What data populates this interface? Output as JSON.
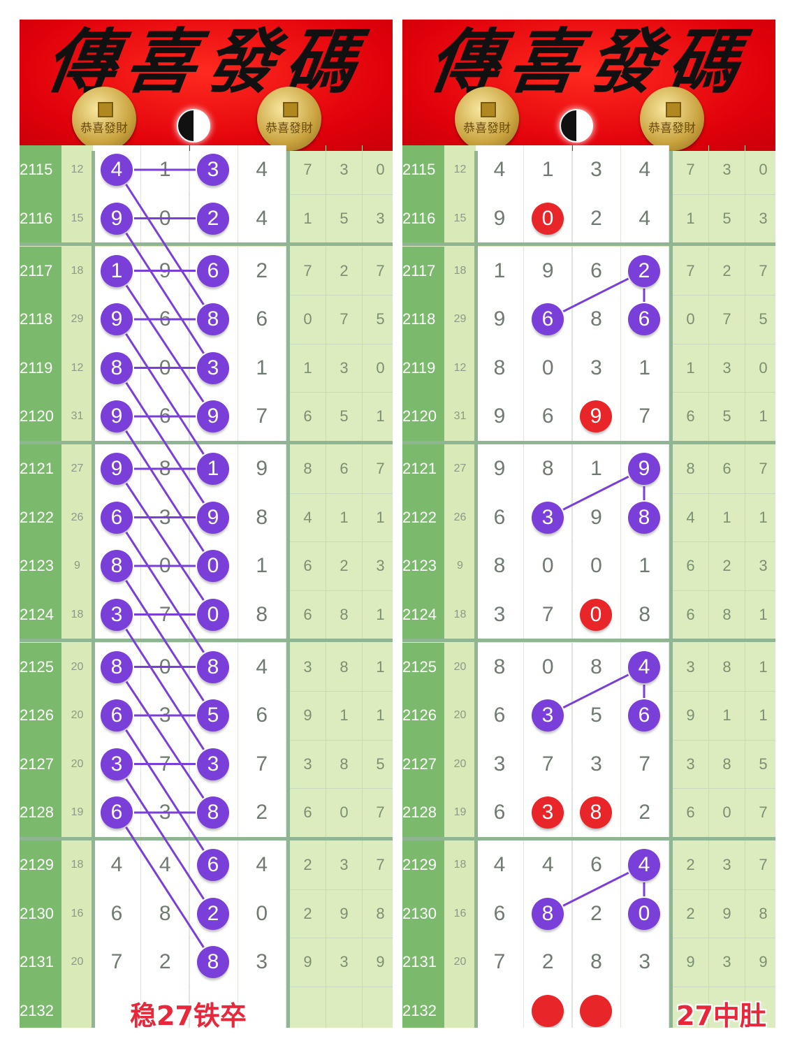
{
  "banner": {
    "lettering": "傳喜發碼",
    "coin_lettering": "恭喜發財"
  },
  "colors": {
    "purple": "#7a3fd8",
    "red": "#e8262a",
    "period_bg": "#7bb96c",
    "caption": "#e8283a",
    "banner": "#e8000a"
  },
  "groups": [
    2,
    4,
    4,
    4,
    4
  ],
  "rows": [
    {
      "period": "2115",
      "sum": "12",
      "digits": [
        "4",
        "1",
        "3",
        "4"
      ],
      "tail": [
        "7",
        "3",
        "0"
      ]
    },
    {
      "period": "2116",
      "sum": "15",
      "digits": [
        "9",
        "0",
        "2",
        "4"
      ],
      "tail": [
        "1",
        "5",
        "3"
      ]
    },
    {
      "period": "2117",
      "sum": "18",
      "digits": [
        "1",
        "9",
        "6",
        "2"
      ],
      "tail": [
        "7",
        "2",
        "7"
      ]
    },
    {
      "period": "2118",
      "sum": "29",
      "digits": [
        "9",
        "6",
        "8",
        "6"
      ],
      "tail": [
        "0",
        "7",
        "5"
      ]
    },
    {
      "period": "2119",
      "sum": "12",
      "digits": [
        "8",
        "0",
        "3",
        "1"
      ],
      "tail": [
        "1",
        "3",
        "0"
      ]
    },
    {
      "period": "2120",
      "sum": "31",
      "digits": [
        "9",
        "6",
        "9",
        "7"
      ],
      "tail": [
        "6",
        "5",
        "1"
      ]
    },
    {
      "period": "2121",
      "sum": "27",
      "digits": [
        "9",
        "8",
        "1",
        "9"
      ],
      "tail": [
        "8",
        "6",
        "7"
      ]
    },
    {
      "period": "2122",
      "sum": "26",
      "digits": [
        "6",
        "3",
        "9",
        "8"
      ],
      "tail": [
        "4",
        "1",
        "1"
      ]
    },
    {
      "period": "2123",
      "sum": "9",
      "digits": [
        "8",
        "0",
        "0",
        "1"
      ],
      "tail": [
        "6",
        "2",
        "3"
      ]
    },
    {
      "period": "2124",
      "sum": "18",
      "digits": [
        "3",
        "7",
        "0",
        "8"
      ],
      "tail": [
        "6",
        "8",
        "1"
      ]
    },
    {
      "period": "2125",
      "sum": "20",
      "digits": [
        "8",
        "0",
        "8",
        "4"
      ],
      "tail": [
        "3",
        "8",
        "1"
      ]
    },
    {
      "period": "2126",
      "sum": "20",
      "digits": [
        "6",
        "3",
        "5",
        "6"
      ],
      "tail": [
        "9",
        "1",
        "1"
      ]
    },
    {
      "period": "2127",
      "sum": "20",
      "digits": [
        "3",
        "7",
        "3",
        "7"
      ],
      "tail": [
        "3",
        "8",
        "5"
      ]
    },
    {
      "period": "2128",
      "sum": "19",
      "digits": [
        "6",
        "3",
        "8",
        "2"
      ],
      "tail": [
        "6",
        "0",
        "7"
      ]
    },
    {
      "period": "2129",
      "sum": "18",
      "digits": [
        "4",
        "4",
        "6",
        "4"
      ],
      "tail": [
        "2",
        "3",
        "7"
      ]
    },
    {
      "period": "2130",
      "sum": "16",
      "digits": [
        "6",
        "8",
        "2",
        "0"
      ],
      "tail": [
        "2",
        "9",
        "8"
      ]
    },
    {
      "period": "2131",
      "sum": "20",
      "digits": [
        "7",
        "2",
        "8",
        "3"
      ],
      "tail": [
        "9",
        "3",
        "9"
      ]
    },
    {
      "period": "2132",
      "sum": "",
      "digits": [
        "",
        "",
        "",
        ""
      ],
      "tail": [
        "",
        "",
        ""
      ]
    }
  ],
  "panels": [
    {
      "caption": "稳27铁卒",
      "purple": [
        [
          0,
          0
        ],
        [
          0,
          2
        ],
        [
          1,
          0
        ],
        [
          1,
          2
        ],
        [
          2,
          0
        ],
        [
          2,
          2
        ],
        [
          3,
          0
        ],
        [
          3,
          2
        ],
        [
          4,
          0
        ],
        [
          4,
          2
        ],
        [
          5,
          0
        ],
        [
          5,
          2
        ],
        [
          6,
          0
        ],
        [
          6,
          2
        ],
        [
          7,
          0
        ],
        [
          7,
          2
        ],
        [
          8,
          0
        ],
        [
          8,
          2
        ],
        [
          9,
          0
        ],
        [
          9,
          2
        ],
        [
          10,
          0
        ],
        [
          10,
          2
        ],
        [
          11,
          0
        ],
        [
          11,
          2
        ],
        [
          12,
          0
        ],
        [
          12,
          2
        ],
        [
          13,
          0
        ],
        [
          13,
          2
        ],
        [
          14,
          2
        ],
        [
          15,
          2
        ],
        [
          16,
          2
        ]
      ],
      "red": [],
      "links": [
        [
          [
            0,
            0
          ],
          [
            0,
            2
          ]
        ],
        [
          [
            1,
            0
          ],
          [
            1,
            2
          ]
        ],
        [
          [
            2,
            0
          ],
          [
            2,
            2
          ]
        ],
        [
          [
            3,
            0
          ],
          [
            3,
            2
          ]
        ],
        [
          [
            4,
            0
          ],
          [
            4,
            2
          ]
        ],
        [
          [
            5,
            0
          ],
          [
            5,
            2
          ]
        ],
        [
          [
            6,
            0
          ],
          [
            6,
            2
          ]
        ],
        [
          [
            7,
            0
          ],
          [
            7,
            2
          ]
        ],
        [
          [
            8,
            0
          ],
          [
            8,
            2
          ]
        ],
        [
          [
            9,
            0
          ],
          [
            9,
            2
          ]
        ],
        [
          [
            10,
            0
          ],
          [
            10,
            2
          ]
        ],
        [
          [
            11,
            0
          ],
          [
            11,
            2
          ]
        ],
        [
          [
            12,
            0
          ],
          [
            12,
            2
          ]
        ],
        [
          [
            13,
            0
          ],
          [
            13,
            2
          ]
        ],
        [
          [
            0,
            0
          ],
          [
            3,
            2
          ]
        ],
        [
          [
            1,
            0
          ],
          [
            4,
            2
          ]
        ],
        [
          [
            2,
            0
          ],
          [
            5,
            2
          ]
        ],
        [
          [
            3,
            0
          ],
          [
            6,
            2
          ]
        ],
        [
          [
            4,
            0
          ],
          [
            7,
            2
          ]
        ],
        [
          [
            5,
            0
          ],
          [
            8,
            2
          ]
        ],
        [
          [
            6,
            0
          ],
          [
            9,
            2
          ]
        ],
        [
          [
            7,
            0
          ],
          [
            10,
            2
          ]
        ],
        [
          [
            8,
            0
          ],
          [
            11,
            2
          ]
        ],
        [
          [
            9,
            0
          ],
          [
            12,
            2
          ]
        ],
        [
          [
            10,
            0
          ],
          [
            13,
            2
          ]
        ],
        [
          [
            11,
            0
          ],
          [
            14,
            2
          ]
        ],
        [
          [
            12,
            0
          ],
          [
            15,
            2
          ]
        ],
        [
          [
            13,
            0
          ],
          [
            16,
            2
          ]
        ]
      ]
    },
    {
      "caption": "27中肚",
      "purple": [
        [
          2,
          3
        ],
        [
          3,
          1
        ],
        [
          3,
          3
        ],
        [
          6,
          3
        ],
        [
          7,
          1
        ],
        [
          7,
          3
        ],
        [
          10,
          3
        ],
        [
          11,
          1
        ],
        [
          11,
          3
        ],
        [
          14,
          3
        ],
        [
          15,
          1
        ],
        [
          15,
          3
        ]
      ],
      "red": [
        [
          1,
          1
        ],
        [
          5,
          2
        ],
        [
          9,
          2
        ],
        [
          13,
          1
        ],
        [
          13,
          2
        ],
        [
          17,
          1
        ],
        [
          17,
          2
        ]
      ],
      "links": [
        [
          [
            3,
            1
          ],
          [
            2,
            3
          ]
        ],
        [
          [
            2,
            3
          ],
          [
            3,
            3
          ]
        ],
        [
          [
            7,
            1
          ],
          [
            6,
            3
          ]
        ],
        [
          [
            6,
            3
          ],
          [
            7,
            3
          ]
        ],
        [
          [
            11,
            1
          ],
          [
            10,
            3
          ]
        ],
        [
          [
            10,
            3
          ],
          [
            11,
            3
          ]
        ],
        [
          [
            15,
            1
          ],
          [
            14,
            3
          ]
        ],
        [
          [
            14,
            3
          ],
          [
            15,
            3
          ]
        ]
      ]
    }
  ]
}
